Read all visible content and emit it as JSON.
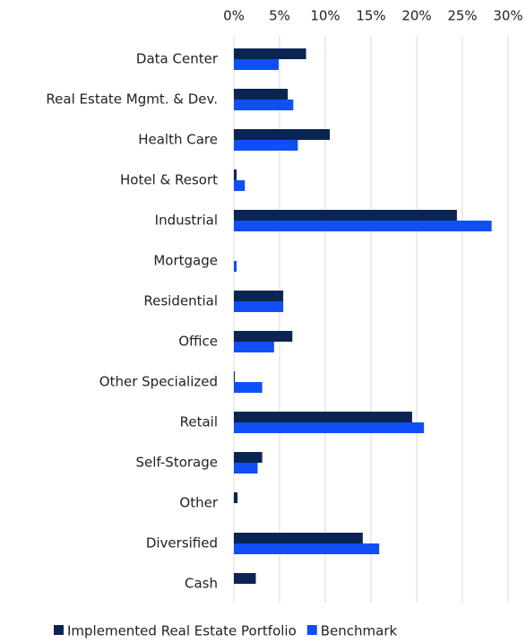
{
  "chart_data": {
    "type": "hbar",
    "categories": [
      "Data Center",
      "Real Estate Mgmt. & Dev.",
      "Health Care",
      "Hotel & Resort",
      "Industrial",
      "Mortgage",
      "Residential",
      "Office",
      "Other Specialized",
      "Retail",
      "Self-Storage",
      "Other",
      "Diversified",
      "Cash"
    ],
    "series": [
      {
        "name": "Implemented Real Estate Portfolio",
        "color": "#0b2553",
        "values": [
          7.9,
          5.9,
          10.5,
          0.3,
          24.4,
          0,
          5.4,
          6.4,
          0.1,
          19.5,
          3.1,
          0.4,
          14.1,
          2.4
        ]
      },
      {
        "name": "Benchmark",
        "color": "#0f4ff5",
        "values": [
          4.9,
          6.5,
          7.0,
          1.2,
          28.2,
          0.3,
          5.4,
          4.4,
          3.1,
          20.8,
          2.6,
          0,
          15.9,
          0
        ]
      }
    ],
    "xlim": [
      0,
      30
    ],
    "xticks": [
      {
        "value": 0,
        "label": "0%"
      },
      {
        "value": 5,
        "label": "5%"
      },
      {
        "value": 10,
        "label": "10%"
      },
      {
        "value": 15,
        "label": "15%"
      },
      {
        "value": 20,
        "label": "20%"
      },
      {
        "value": 25,
        "label": "25%"
      },
      {
        "value": 30,
        "label": "30%"
      }
    ],
    "grid": true,
    "legend": "bottom"
  }
}
